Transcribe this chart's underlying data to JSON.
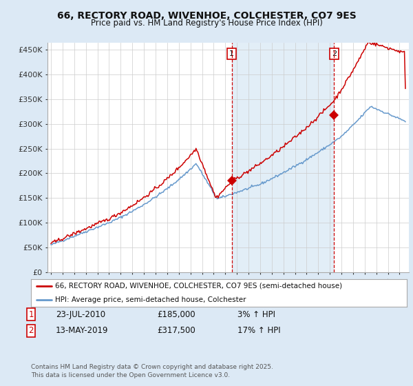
{
  "title": "66, RECTORY ROAD, WIVENHOE, COLCHESTER, CO7 9ES",
  "subtitle": "Price paid vs. HM Land Registry's House Price Index (HPI)",
  "background_color": "#dce9f5",
  "plot_bg_color": "#ffffff",
  "ylabel_ticks": [
    "£0",
    "£50K",
    "£100K",
    "£150K",
    "£200K",
    "£250K",
    "£300K",
    "£350K",
    "£400K",
    "£450K"
  ],
  "ytick_values": [
    0,
    50000,
    100000,
    150000,
    200000,
    250000,
    300000,
    350000,
    400000,
    450000
  ],
  "ylim": [
    0,
    465000
  ],
  "xlim_start": 1994.7,
  "xlim_end": 2025.8,
  "legend_label_red": "66, RECTORY ROAD, WIVENHOE, COLCHESTER, CO7 9ES (semi-detached house)",
  "legend_label_blue": "HPI: Average price, semi-detached house, Colchester",
  "red_color": "#cc0000",
  "hpi_line_color": "#6699cc",
  "vline_color": "#cc0000",
  "shade_color": "#d6e8f5",
  "xgrid_color": "#cccccc",
  "ygrid_color": "#cccccc",
  "marker1_x": 2010.55,
  "marker1_y": 185000,
  "marker2_x": 2019.36,
  "marker2_y": 317500,
  "footer": "Contains HM Land Registry data © Crown copyright and database right 2025.\nThis data is licensed under the Open Government Licence v3.0."
}
